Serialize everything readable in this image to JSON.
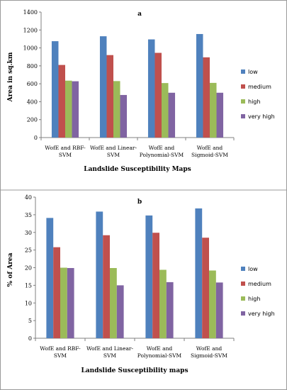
{
  "colors": {
    "low": "#4f81bd",
    "medium": "#c0504d",
    "high": "#9bbb59",
    "very_high": "#8064a2"
  },
  "chart_data": [
    {
      "type": "bar",
      "panel_label": "a",
      "categories": [
        [
          "WofE and RBF-",
          "SVM"
        ],
        [
          "WofE and Linear-",
          "SVM"
        ],
        [
          "WofE and",
          "Polynomial-SVM"
        ],
        [
          "WofE and",
          "Sigmoid-SVM"
        ]
      ],
      "series": [
        {
          "name": "low",
          "values": [
            1075,
            1130,
            1095,
            1155
          ]
        },
        {
          "name": "medium",
          "values": [
            810,
            920,
            945,
            895
          ]
        },
        {
          "name": "high",
          "values": [
            635,
            630,
            608,
            610
          ]
        },
        {
          "name": "very high",
          "values": [
            628,
            475,
            500,
            500
          ]
        }
      ],
      "xlabel": "Landslide Susceptibility Maps",
      "ylabel": "Area in sq.km",
      "ylim": [
        0,
        1400
      ],
      "yticks": [
        0,
        200,
        400,
        600,
        800,
        1000,
        1200,
        1400
      ],
      "legend": "right"
    },
    {
      "type": "bar",
      "panel_label": "b",
      "categories": [
        [
          "WofE and RBF-",
          "SVM"
        ],
        [
          "WofE and Linear-",
          "SVM"
        ],
        [
          "WofE and",
          "Polynomial-SVM"
        ],
        [
          "WofE and",
          "Sigmoid-SVM"
        ]
      ],
      "series": [
        {
          "name": "low",
          "values": [
            34.1,
            35.9,
            34.8,
            36.8
          ]
        },
        {
          "name": "medium",
          "values": [
            25.8,
            29.2,
            29.9,
            28.5
          ]
        },
        {
          "name": "high",
          "values": [
            20.0,
            19.9,
            19.4,
            19.2
          ]
        },
        {
          "name": "very high",
          "values": [
            19.9,
            15.0,
            15.9,
            15.8
          ]
        }
      ],
      "xlabel": "Landslide Susceptibility maps",
      "ylabel": "% of Area",
      "ylim": [
        0,
        40
      ],
      "yticks": [
        0,
        5,
        10,
        15,
        20,
        25,
        30,
        35,
        40
      ],
      "legend": "right"
    }
  ]
}
